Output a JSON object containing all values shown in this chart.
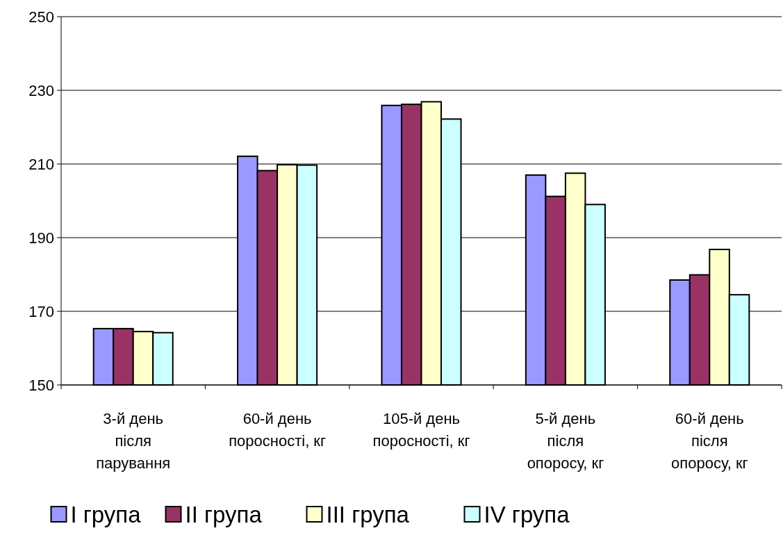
{
  "chart_data": {
    "type": "bar",
    "categories": [
      "3-й день після парування",
      "60-й день поросності, кг",
      "105-й день поросності, кг",
      "5-й день після опоросу, кг",
      "60-й день після опоросу, кг"
    ],
    "series": [
      {
        "name": "I група",
        "color": "#9999ff",
        "values": [
          165.3,
          212.1,
          225.9,
          207.0,
          178.5
        ]
      },
      {
        "name": "II група",
        "color": "#993366",
        "values": [
          165.3,
          208.2,
          226.2,
          201.2,
          179.9
        ]
      },
      {
        "name": "III група",
        "color": "#ffffcc",
        "values": [
          164.5,
          209.8,
          226.9,
          207.5,
          186.8
        ]
      },
      {
        "name": "IV група",
        "color": "#ccffff",
        "values": [
          164.2,
          209.7,
          222.2,
          199.0,
          174.5
        ]
      }
    ],
    "ylim": [
      150,
      250
    ],
    "yticks": [
      150,
      170,
      190,
      210,
      230,
      250
    ],
    "grid": "y",
    "legend": "bottom"
  }
}
